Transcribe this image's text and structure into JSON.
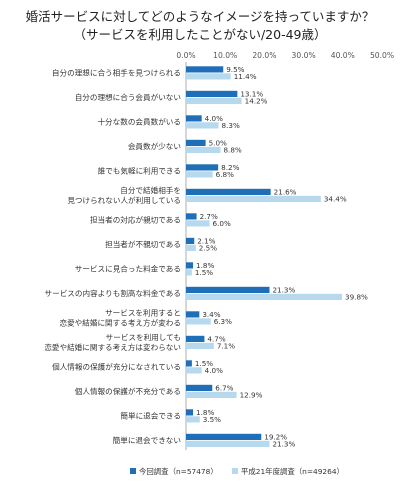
{
  "title_line1": "婚活サービスに対してどのようなイメージを持っていますか？",
  "title_line2": "（サービスを利用したことがない/20-49歳）",
  "chart_data": {
    "type": "bar",
    "orientation": "horizontal",
    "xlim": [
      0,
      50
    ],
    "x_ticks": [
      "0.0%",
      "10.0%",
      "20.0%",
      "30.0%",
      "40.0%",
      "50.0%"
    ],
    "grid": false,
    "legend_position": "bottom",
    "categories": [
      [
        "自分の理想に合う相手を見つけられる"
      ],
      [
        "自分の理想に合う会員がいない"
      ],
      [
        "十分な数の会員数がいる"
      ],
      [
        "会員数が少ない"
      ],
      [
        "誰でも気軽に利用できる"
      ],
      [
        "自分で結婚相手を",
        "見つけられない人が利用している"
      ],
      [
        "担当者の対応が親切である"
      ],
      [
        "担当者が不親切である"
      ],
      [
        "サービスに見合った料金である"
      ],
      [
        "サービスの内容よりも割高な料金である"
      ],
      [
        "サービスを利用すると",
        "恋愛や結婚に関する考え方が変わる"
      ],
      [
        "サービスを利用しても",
        "恋愛や結婚に関する考え方は変わらない"
      ],
      [
        "個人情報の保護が充分になされている"
      ],
      [
        "個人情報の保護が不充分である"
      ],
      [
        "簡単に退会できる"
      ],
      [
        "簡単に退会できない"
      ]
    ],
    "series": [
      {
        "name": "今回調査（n=57478）",
        "color": "#1f6fb8",
        "values": [
          9.5,
          13.1,
          4.0,
          5.0,
          8.2,
          21.6,
          2.7,
          2.1,
          1.8,
          21.3,
          3.4,
          4.7,
          1.5,
          6.7,
          1.8,
          19.2
        ],
        "labels": [
          "9.5%",
          "13.1%",
          "4.0%",
          "5.0%",
          "8.2%",
          "21.6%",
          "2.7%",
          "2.1%",
          "1.8%",
          "21.3%",
          "3.4%",
          "4.7%",
          "1.5%",
          "6.7%",
          "1.8%",
          "19.2%"
        ]
      },
      {
        "name": "平成21年度調査（n=49264）",
        "color": "#b7d9ee",
        "values": [
          11.4,
          14.2,
          8.3,
          8.8,
          6.8,
          34.4,
          6.0,
          2.5,
          1.5,
          39.8,
          6.3,
          7.1,
          4.0,
          12.9,
          3.5,
          21.3
        ],
        "labels": [
          "11.4%",
          "14.2%",
          "8.3%",
          "8.8%",
          "6.8%",
          "34.4%",
          "6.0%",
          "2.5%",
          "1.5%",
          "39.8%",
          "6.3%",
          "7.1%",
          "4.0%",
          "12.9%",
          "3.5%",
          "21.3%"
        ]
      }
    ]
  }
}
